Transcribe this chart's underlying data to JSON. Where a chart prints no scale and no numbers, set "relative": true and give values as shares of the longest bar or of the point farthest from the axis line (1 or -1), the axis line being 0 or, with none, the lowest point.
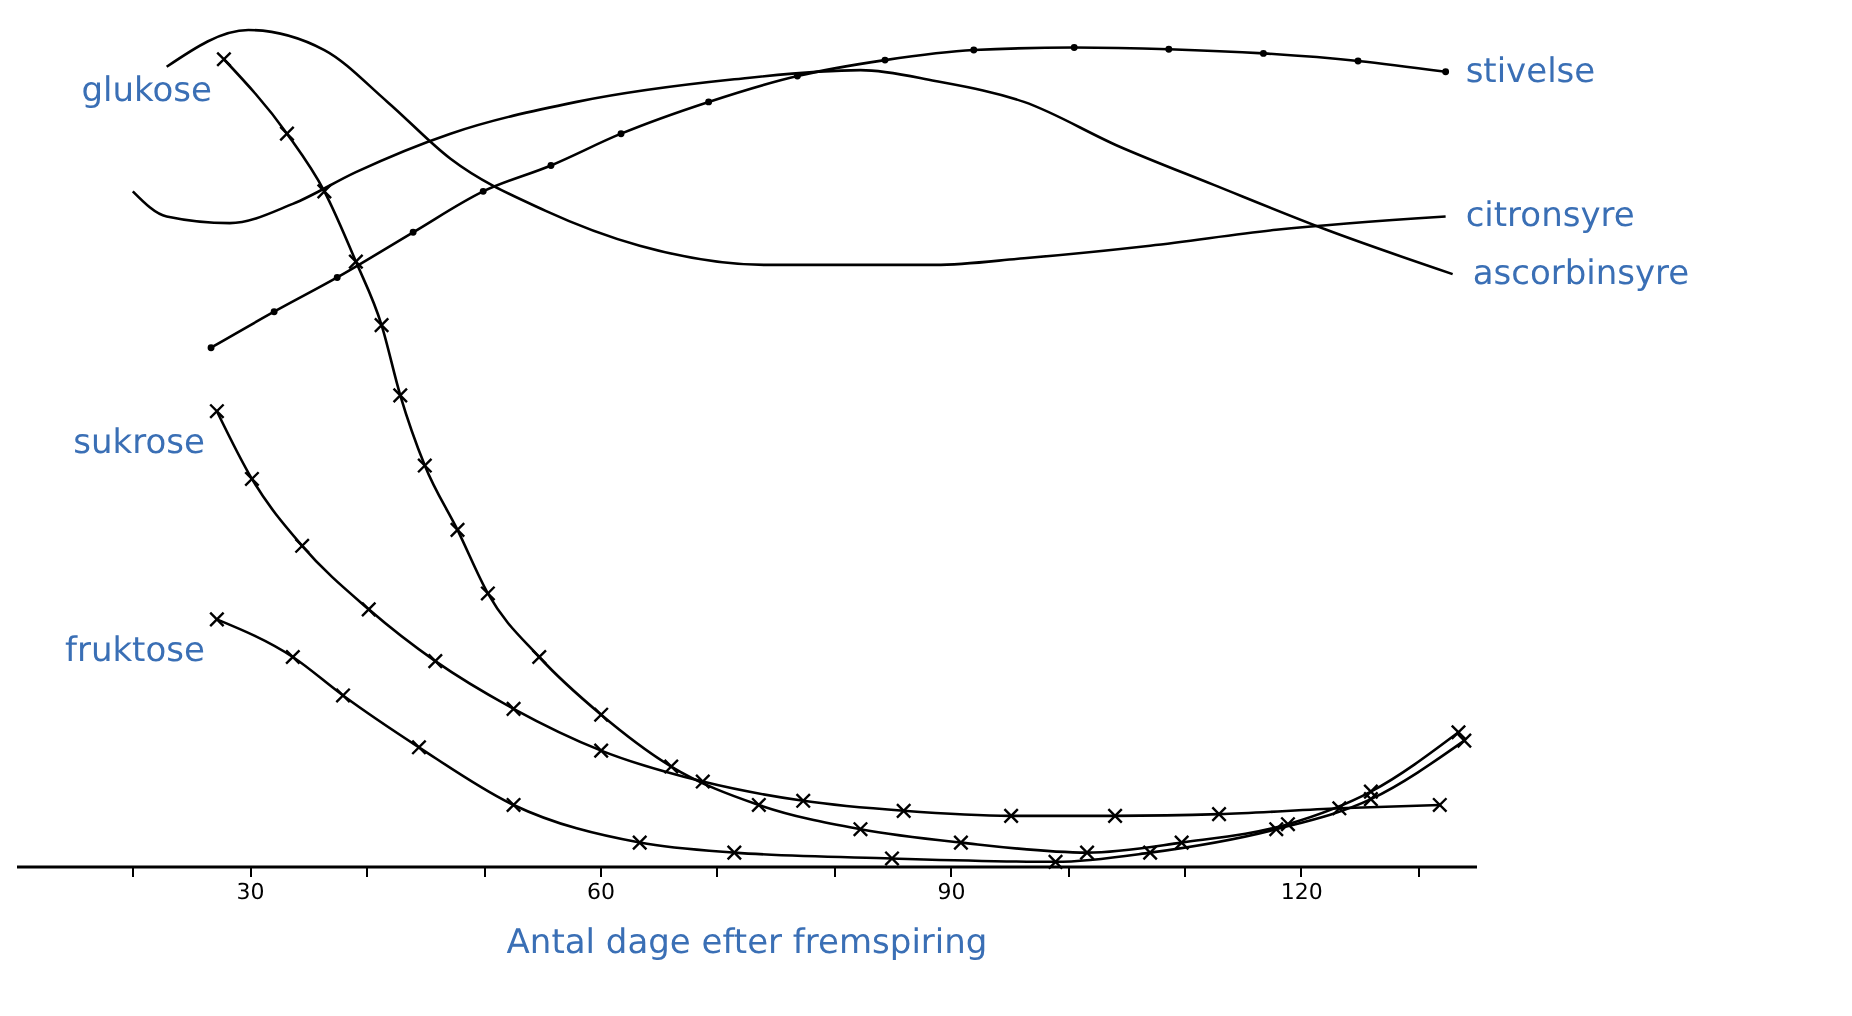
{
  "chart_data": {
    "type": "line",
    "xlabel": "Antal dage efter fremspiring",
    "relative": true,
    "grid": false,
    "xlim": [
      10,
      135
    ],
    "xticks": [
      {
        "value": 20,
        "label": null
      },
      30,
      {
        "value": 40,
        "label": null
      },
      {
        "value": 50,
        "label": null
      },
      60,
      {
        "value": 70,
        "label": null
      },
      {
        "value": 80,
        "label": null
      },
      90,
      {
        "value": 100,
        "label": null
      },
      {
        "value": 110,
        "label": null
      },
      120,
      {
        "value": 130,
        "label": null
      }
    ],
    "series": [
      {
        "name": "glukose",
        "color": "#000000",
        "marker": "cross",
        "x": [
          27.8,
          33.2,
          36.4,
          39.1,
          41.3,
          42.9,
          45.0,
          47.8,
          50.4,
          54.8,
          60.1,
          66.1,
          73.6,
          82.3,
          90.9,
          101.7,
          109.8,
          118.9,
          126.0,
          133.5
        ],
        "values": [
          0.965,
          0.876,
          0.807,
          0.723,
          0.647,
          0.563,
          0.479,
          0.402,
          0.326,
          0.25,
          0.181,
          0.119,
          0.073,
          0.044,
          0.028,
          0.016,
          0.028,
          0.05,
          0.089,
          0.16
        ]
      },
      {
        "name": "sukrose",
        "color": "#000000",
        "marker": "cross",
        "x": [
          27.2,
          30.2,
          34.5,
          40.2,
          45.9,
          52.6,
          60.1,
          68.8,
          77.4,
          86.0,
          95.2,
          104.1,
          113.0,
          123.3,
          131.9
        ],
        "values": [
          0.544,
          0.463,
          0.383,
          0.307,
          0.245,
          0.188,
          0.138,
          0.101,
          0.078,
          0.066,
          0.06,
          0.06,
          0.062,
          0.069,
          0.073
        ]
      },
      {
        "name": "fruktose",
        "color": "#000000",
        "marker": "cross",
        "x": [
          27.2,
          33.7,
          38.0,
          44.5,
          52.6,
          63.4,
          71.5,
          85.0,
          99.0,
          107.1,
          117.9,
          126.0,
          134.0
        ],
        "values": [
          0.295,
          0.25,
          0.204,
          0.142,
          0.073,
          0.028,
          0.016,
          0.009,
          0.005,
          0.016,
          0.044,
          0.08,
          0.15
        ]
      },
      {
        "name": "stivelse",
        "color": "#000000",
        "marker": "circle",
        "x": [
          26.7,
          32.1,
          37.5,
          44.0,
          50.0,
          55.8,
          61.8,
          69.3,
          76.9,
          84.4,
          92.0,
          100.6,
          108.7,
          116.8,
          124.9,
          132.4
        ],
        "values": [
          0.62,
          0.663,
          0.704,
          0.758,
          0.807,
          0.838,
          0.876,
          0.914,
          0.945,
          0.964,
          0.976,
          0.979,
          0.977,
          0.972,
          0.963,
          0.95
        ]
      },
      {
        "name": "citronsyre",
        "color": "#000000",
        "marker": "none",
        "x": [
          22.9,
          29.9,
          36.4,
          41.8,
          47.2,
          55.3,
          63.4,
          74.2,
          88.7,
          96.3,
          107.1,
          117.9,
          132.4
        ],
        "values": [
          0.956,
          1.0,
          0.976,
          0.914,
          0.846,
          0.784,
          0.742,
          0.719,
          0.719,
          0.727,
          0.742,
          0.761,
          0.777
        ]
      },
      {
        "name": "ascorbinsyre",
        "color": "#000000",
        "marker": "none",
        "x": [
          20.0,
          22.9,
          28.3,
          33.7,
          39.1,
          47.2,
          58.0,
          71.5,
          82.3,
          88.7,
          96.3,
          104.4,
          112.5,
          122.2,
          133.0
        ],
        "values": [
          0.807,
          0.777,
          0.769,
          0.792,
          0.83,
          0.876,
          0.914,
          0.941,
          0.952,
          0.939,
          0.914,
          0.861,
          0.815,
          0.761,
          0.708
        ]
      }
    ]
  }
}
